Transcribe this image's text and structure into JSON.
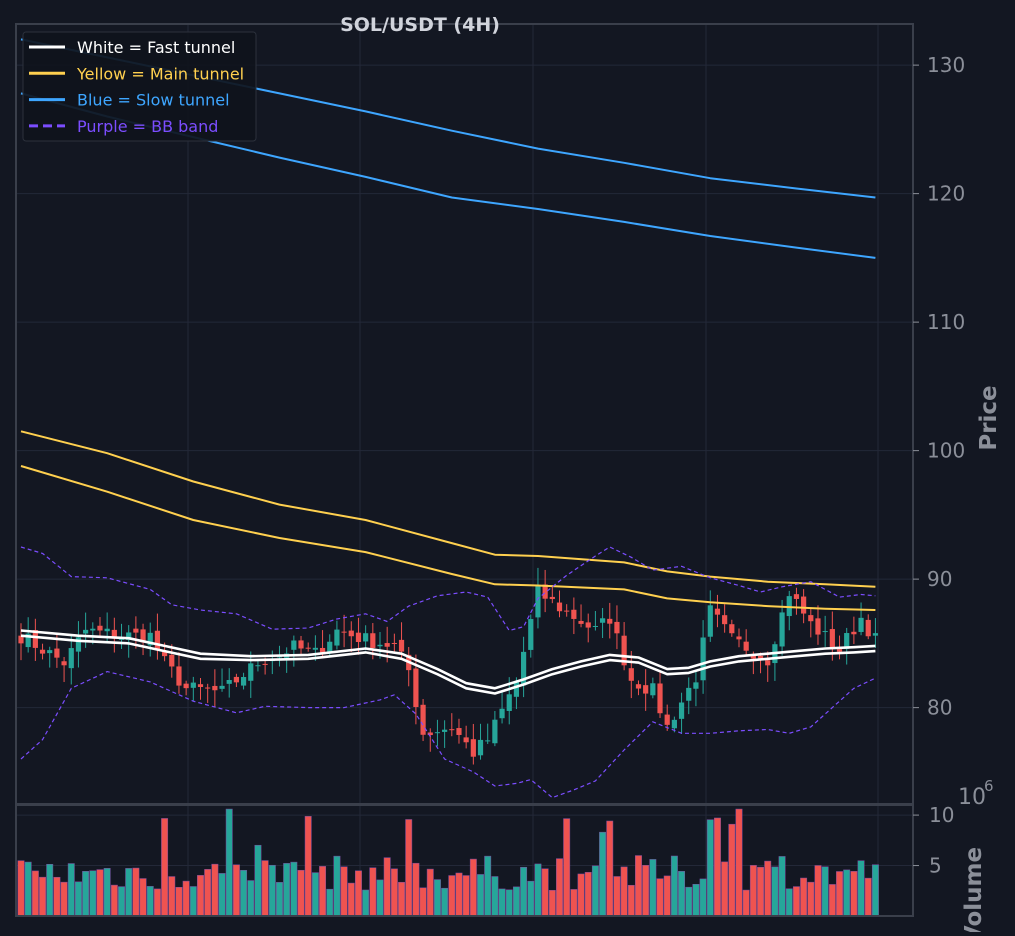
{
  "colors": {
    "background": "#131722",
    "frame": "#3a3f4b",
    "grid": "#232838",
    "text": "#d1d4dc",
    "axis_text": "#8b8f99",
    "up": "#26a69a",
    "down": "#ef5350",
    "fast": "#ffffff",
    "main": "#ffd04f",
    "slow": "#3ea6ff",
    "bb": "#7b4dff"
  },
  "chart_data": [
    {
      "type": "candlestick",
      "title": "SOL/USDT (4H)",
      "ylabel": "Price",
      "ylim": [
        72.5,
        133.2
      ],
      "y_ticks": [
        80,
        90,
        100,
        110,
        120,
        130
      ],
      "y_tick_labels": [
        "80",
        "90",
        "100",
        "110",
        "120",
        "130"
      ],
      "y_axis_side": "right",
      "grid": true,
      "legend_position": "top-left",
      "legend": [
        {
          "label": "White = Fast tunnel",
          "color": "#ffffff",
          "style": "solid"
        },
        {
          "label": "Yellow = Main tunnel",
          "color": "#ffd04f",
          "style": "solid"
        },
        {
          "label": "Blue = Slow tunnel",
          "color": "#3ea6ff",
          "style": "solid"
        },
        {
          "label": "Purple = BB band",
          "color": "#7b4dff",
          "style": "dashed"
        }
      ],
      "bar_count": 120,
      "ohlc_anchors": [
        {
          "bar": 0,
          "close": 85.6
        },
        {
          "bar": 6,
          "close": 83.5
        },
        {
          "bar": 9,
          "close": 86.0
        },
        {
          "bar": 14,
          "close": 85.6
        },
        {
          "bar": 18,
          "close": 85.6
        },
        {
          "bar": 20,
          "close": 83.5
        },
        {
          "bar": 23,
          "close": 81.5
        },
        {
          "bar": 28,
          "close": 81.2
        },
        {
          "bar": 33,
          "close": 83.5
        },
        {
          "bar": 38,
          "close": 84.7
        },
        {
          "bar": 41,
          "close": 84.2
        },
        {
          "bar": 44,
          "close": 86.0
        },
        {
          "bar": 48,
          "close": 85.3
        },
        {
          "bar": 52,
          "close": 84.8
        },
        {
          "bar": 54,
          "close": 82.9
        },
        {
          "bar": 56,
          "close": 78.0
        },
        {
          "bar": 60,
          "close": 78.5
        },
        {
          "bar": 63,
          "close": 76.5
        },
        {
          "bar": 65,
          "close": 77.5
        },
        {
          "bar": 69,
          "close": 82.0
        },
        {
          "bar": 72,
          "close": 89.0
        },
        {
          "bar": 75,
          "close": 87.8
        },
        {
          "bar": 80,
          "close": 86.0
        },
        {
          "bar": 82,
          "close": 87.0
        },
        {
          "bar": 85,
          "close": 82.2
        },
        {
          "bar": 88,
          "close": 81.3
        },
        {
          "bar": 90,
          "close": 78.5
        },
        {
          "bar": 94,
          "close": 82.4
        },
        {
          "bar": 96,
          "close": 87.5
        },
        {
          "bar": 99,
          "close": 85.3
        },
        {
          "bar": 104,
          "close": 83.8
        },
        {
          "bar": 107,
          "close": 89.0
        },
        {
          "bar": 110,
          "close": 86.5
        },
        {
          "bar": 114,
          "close": 84.5
        },
        {
          "bar": 117,
          "close": 87.0
        },
        {
          "bar": 119,
          "close": 85.3
        }
      ],
      "series": [
        {
          "role": "fast_upper",
          "color": "#ffffff",
          "style": "solid",
          "points": [
            [
              0,
              86.0
            ],
            [
              8,
              85.6
            ],
            [
              15,
              85.4
            ],
            [
              20,
              84.8
            ],
            [
              25,
              84.2
            ],
            [
              32,
              84.0
            ],
            [
              40,
              84.1
            ],
            [
              48,
              84.6
            ],
            [
              53,
              84.2
            ],
            [
              58,
              83.0
            ],
            [
              62,
              81.9
            ],
            [
              66,
              81.5
            ],
            [
              70,
              82.2
            ],
            [
              74,
              83.0
            ],
            [
              78,
              83.6
            ],
            [
              82,
              84.1
            ],
            [
              86,
              83.9
            ],
            [
              90,
              83.0
            ],
            [
              93,
              83.1
            ],
            [
              96,
              83.6
            ],
            [
              100,
              84.0
            ],
            [
              104,
              84.2
            ],
            [
              108,
              84.4
            ],
            [
              112,
              84.6
            ],
            [
              116,
              84.7
            ],
            [
              119,
              84.8
            ]
          ]
        },
        {
          "role": "fast_lower",
          "color": "#ffffff",
          "style": "solid",
          "points": [
            [
              0,
              85.6
            ],
            [
              8,
              85.2
            ],
            [
              15,
              85.0
            ],
            [
              20,
              84.4
            ],
            [
              25,
              83.8
            ],
            [
              32,
              83.7
            ],
            [
              40,
              83.8
            ],
            [
              48,
              84.3
            ],
            [
              53,
              83.8
            ],
            [
              58,
              82.6
            ],
            [
              62,
              81.5
            ],
            [
              66,
              81.1
            ],
            [
              70,
              81.8
            ],
            [
              74,
              82.6
            ],
            [
              78,
              83.2
            ],
            [
              82,
              83.7
            ],
            [
              86,
              83.5
            ],
            [
              90,
              82.6
            ],
            [
              93,
              82.7
            ],
            [
              96,
              83.2
            ],
            [
              100,
              83.6
            ],
            [
              104,
              83.8
            ],
            [
              108,
              84.0
            ],
            [
              112,
              84.2
            ],
            [
              116,
              84.3
            ],
            [
              119,
              84.4
            ]
          ]
        },
        {
          "role": "main_upper",
          "color": "#ffd04f",
          "style": "solid",
          "points": [
            [
              0,
              101.5
            ],
            [
              12,
              99.8
            ],
            [
              24,
              97.6
            ],
            [
              36,
              95.8
            ],
            [
              48,
              94.6
            ],
            [
              60,
              92.8
            ],
            [
              66,
              91.9
            ],
            [
              72,
              91.8
            ],
            [
              84,
              91.3
            ],
            [
              90,
              90.6
            ],
            [
              96,
              90.2
            ],
            [
              104,
              89.8
            ],
            [
              112,
              89.6
            ],
            [
              119,
              89.4
            ]
          ]
        },
        {
          "role": "main_lower",
          "color": "#ffd04f",
          "style": "solid",
          "points": [
            [
              0,
              98.8
            ],
            [
              12,
              96.8
            ],
            [
              24,
              94.6
            ],
            [
              36,
              93.2
            ],
            [
              48,
              92.1
            ],
            [
              60,
              90.4
            ],
            [
              66,
              89.6
            ],
            [
              72,
              89.5
            ],
            [
              84,
              89.2
            ],
            [
              90,
              88.5
            ],
            [
              96,
              88.2
            ],
            [
              104,
              87.9
            ],
            [
              112,
              87.7
            ],
            [
              119,
              87.6
            ]
          ]
        },
        {
          "role": "slow_upper",
          "color": "#3ea6ff",
          "style": "solid",
          "points": [
            [
              0,
              132.0
            ],
            [
              12,
              130.6
            ],
            [
              24,
              129.2
            ],
            [
              36,
              127.8
            ],
            [
              48,
              126.4
            ],
            [
              60,
              124.9
            ],
            [
              72,
              123.5
            ],
            [
              84,
              122.4
            ],
            [
              96,
              121.2
            ],
            [
              108,
              120.4
            ],
            [
              119,
              119.7
            ]
          ]
        },
        {
          "role": "slow_lower",
          "color": "#3ea6ff",
          "style": "solid",
          "points": [
            [
              0,
              127.8
            ],
            [
              12,
              126.0
            ],
            [
              24,
              124.4
            ],
            [
              36,
              122.8
            ],
            [
              48,
              121.3
            ],
            [
              60,
              119.7
            ],
            [
              72,
              118.8
            ],
            [
              84,
              117.8
            ],
            [
              96,
              116.7
            ],
            [
              108,
              115.8
            ],
            [
              119,
              115.0
            ]
          ]
        },
        {
          "role": "bb_upper",
          "color": "#7b4dff",
          "style": "dashed",
          "points": [
            [
              0,
              92.5
            ],
            [
              3,
              92.0
            ],
            [
              7,
              90.2
            ],
            [
              12,
              90.1
            ],
            [
              18,
              89.2
            ],
            [
              21,
              88.0
            ],
            [
              25,
              87.6
            ],
            [
              30,
              87.3
            ],
            [
              35,
              86.1
            ],
            [
              40,
              86.2
            ],
            [
              44,
              86.9
            ],
            [
              48,
              87.3
            ],
            [
              51,
              86.7
            ],
            [
              54,
              87.9
            ],
            [
              58,
              88.7
            ],
            [
              62,
              89.0
            ],
            [
              65,
              88.6
            ],
            [
              68,
              86.0
            ],
            [
              70,
              86.3
            ],
            [
              72,
              88.5
            ],
            [
              76,
              90.3
            ],
            [
              80,
              91.8
            ],
            [
              82,
              92.5
            ],
            [
              85,
              91.7
            ],
            [
              88,
              90.7
            ],
            [
              92,
              91.0
            ],
            [
              96,
              90.1
            ],
            [
              100,
              89.5
            ],
            [
              103,
              89.0
            ],
            [
              106,
              89.4
            ],
            [
              110,
              89.8
            ],
            [
              114,
              88.6
            ],
            [
              117,
              88.8
            ],
            [
              119,
              88.7
            ]
          ]
        },
        {
          "role": "bb_lower",
          "color": "#7b4dff",
          "style": "dashed",
          "points": [
            [
              0,
              76.0
            ],
            [
              3,
              77.5
            ],
            [
              7,
              81.5
            ],
            [
              12,
              82.8
            ],
            [
              18,
              82.0
            ],
            [
              24,
              80.5
            ],
            [
              30,
              79.6
            ],
            [
              34,
              80.1
            ],
            [
              40,
              80.0
            ],
            [
              45,
              80.0
            ],
            [
              50,
              80.6
            ],
            [
              52,
              81.0
            ],
            [
              55,
              79.5
            ],
            [
              59,
              76.0
            ],
            [
              63,
              75.0
            ],
            [
              66,
              73.9
            ],
            [
              69,
              74.1
            ],
            [
              71,
              74.4
            ],
            [
              74,
              73.0
            ],
            [
              77,
              73.6
            ],
            [
              80,
              74.3
            ],
            [
              84,
              76.7
            ],
            [
              88,
              78.9
            ],
            [
              92,
              78.0
            ],
            [
              96,
              78.0
            ],
            [
              100,
              78.2
            ],
            [
              104,
              78.3
            ],
            [
              107,
              78.0
            ],
            [
              110,
              78.5
            ],
            [
              113,
              80.0
            ],
            [
              116,
              81.5
            ],
            [
              119,
              82.3
            ]
          ]
        }
      ]
    },
    {
      "type": "bar",
      "ylabel": "Volume",
      "y_scale_exponent": "10",
      "y_scale_power": "6",
      "ylim": [
        0,
        11
      ],
      "y_ticks": [
        5,
        10
      ],
      "y_tick_labels": [
        "5",
        "10"
      ],
      "bar_count": 120
    }
  ]
}
